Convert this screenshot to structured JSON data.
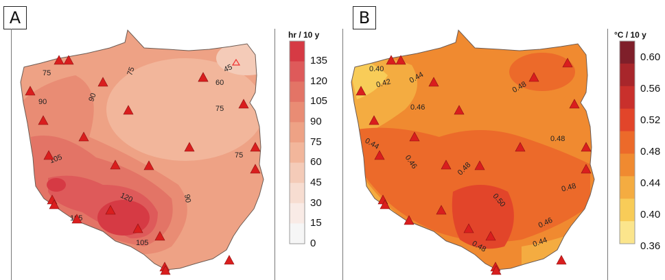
{
  "panel_a": {
    "tag": "A",
    "unit": "hr / 10 y",
    "legend_ticks": [
      "135",
      "120",
      "105",
      "90",
      "75",
      "60",
      "45",
      "30",
      "15",
      "0"
    ],
    "legend_colors": [
      "#d63a44",
      "#de5a5a",
      "#e37466",
      "#e98c74",
      "#eea285",
      "#f2b69b",
      "#f4cbb8",
      "#f7ddd1",
      "#f9ebe6",
      "#f6f6f6"
    ],
    "contour_labels": [
      "75",
      "75",
      "90",
      "90",
      "45",
      "60",
      "75",
      "105",
      "120",
      "90",
      "75",
      "105",
      "105"
    ],
    "station_count": 26
  },
  "panel_b": {
    "tag": "B",
    "unit": "°C / 10 y",
    "legend_ticks": [
      "0.60",
      "0.56",
      "0.52",
      "0.48",
      "0.44",
      "0.40",
      "0.36"
    ],
    "legend_colors": [
      "#7f1f2a",
      "#a8262b",
      "#c9302c",
      "#e2452a",
      "#ec6a2a",
      "#f08a30",
      "#f4ac41",
      "#f8cc58",
      "#fbe58c"
    ],
    "contour_labels": [
      "0.40",
      "0.42",
      "0.44",
      "0.48",
      "0.46",
      "0.44",
      "0.46",
      "0.48",
      "0.48",
      "0.50",
      "0.48",
      "0.46",
      "0.44",
      "0.48"
    ],
    "station_count": 26
  }
}
